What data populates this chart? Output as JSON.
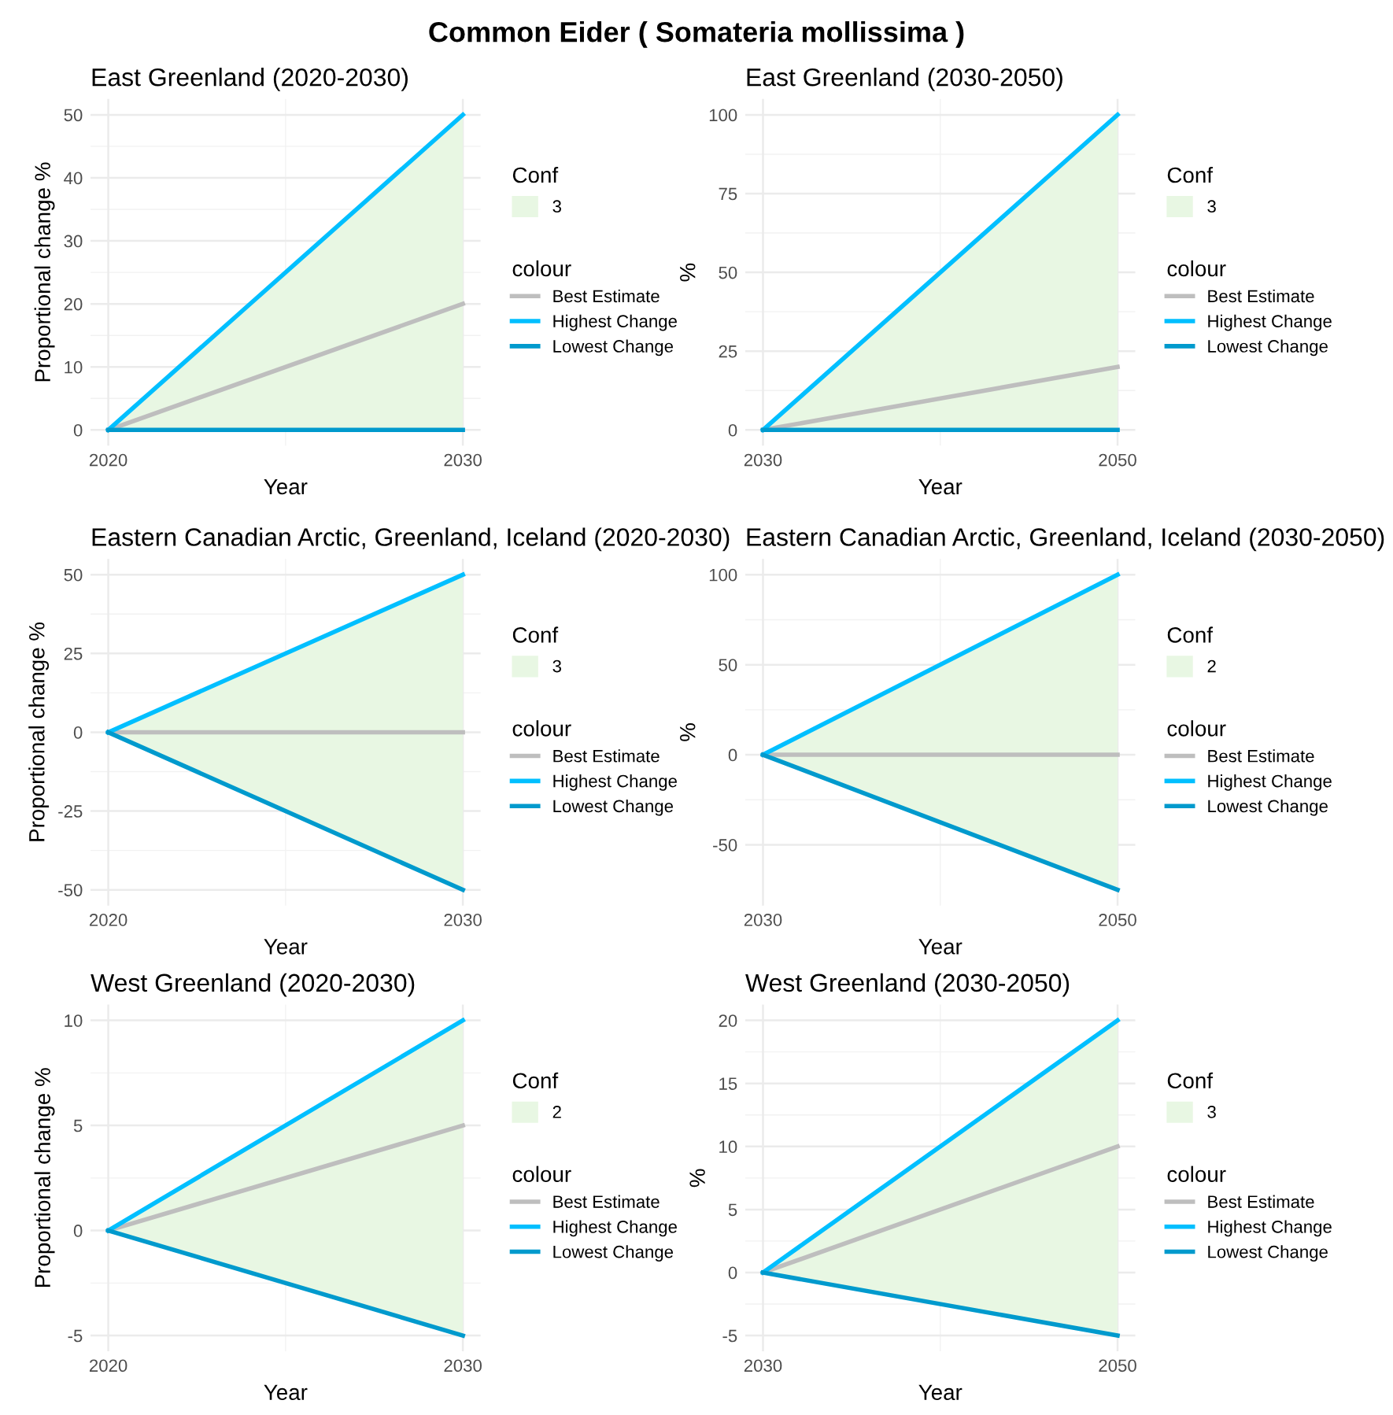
{
  "chart_data": [
    {
      "type": "line",
      "title": "East Greenland (2020-2030)",
      "xlabel": "Year",
      "ylabel": "Proportional change %",
      "x": [
        2020,
        2030
      ],
      "xlim": [
        2019.5,
        2030.5
      ],
      "xticks": [
        2020,
        2030
      ],
      "ylim": [
        -2.5,
        52.5
      ],
      "yticks": [
        0,
        10,
        20,
        30,
        40,
        50
      ],
      "grid": true,
      "legend": "right",
      "legend_title": "colour",
      "annotations": [
        "Conf",
        "3"
      ],
      "series": [
        {
          "name": "Best Estimate",
          "color": "#bebebe",
          "values": [
            0,
            20
          ],
          "lower": [
            0,
            0
          ],
          "upper": [
            0,
            50
          ]
        },
        {
          "name": "Highest Change",
          "color": "#00bfff",
          "values": [
            0,
            50
          ]
        },
        {
          "name": "Lowest Change",
          "color": "#009acd",
          "values": [
            0,
            0
          ]
        }
      ]
    },
    {
      "type": "line",
      "title": "East Greenland (2030-2050)",
      "xlabel": "Year",
      "ylabel": "%",
      "x": [
        2030,
        2050
      ],
      "xlim": [
        2029,
        2051
      ],
      "xticks": [
        2030,
        2050
      ],
      "ylim": [
        -5,
        105
      ],
      "yticks": [
        0,
        25,
        50,
        75,
        100
      ],
      "grid": true,
      "legend": "right",
      "legend_title": "colour",
      "annotations": [
        "Conf",
        "3"
      ],
      "series": [
        {
          "name": "Best Estimate",
          "color": "#bebebe",
          "values": [
            0,
            20
          ],
          "lower": [
            0,
            0
          ],
          "upper": [
            0,
            100
          ]
        },
        {
          "name": "Highest Change",
          "color": "#00bfff",
          "values": [
            0,
            100
          ]
        },
        {
          "name": "Lowest Change",
          "color": "#009acd",
          "values": [
            0,
            0
          ]
        }
      ]
    },
    {
      "type": "line",
      "title": "Eastern Canadian Arctic, Greenland, Iceland (2020-2030)",
      "xlabel": "Year",
      "ylabel": "Proportional change %",
      "x": [
        2020,
        2030
      ],
      "xlim": [
        2019.5,
        2030.5
      ],
      "xticks": [
        2020,
        2030
      ],
      "ylim": [
        -55,
        55
      ],
      "yticks": [
        -50,
        -25,
        0,
        25,
        50
      ],
      "grid": true,
      "legend": "right",
      "legend_title": "colour",
      "annotations": [
        "Conf",
        "3"
      ],
      "series": [
        {
          "name": "Best Estimate",
          "color": "#bebebe",
          "values": [
            0,
            0
          ],
          "lower": [
            0,
            -50
          ],
          "upper": [
            0,
            50
          ]
        },
        {
          "name": "Highest Change",
          "color": "#00bfff",
          "values": [
            0,
            50
          ]
        },
        {
          "name": "Lowest Change",
          "color": "#009acd",
          "values": [
            0,
            -50
          ]
        }
      ]
    },
    {
      "type": "line",
      "title": "Eastern Canadian Arctic, Greenland, Iceland (2030-2050)",
      "xlabel": "Year",
      "ylabel": "%",
      "x": [
        2030,
        2050
      ],
      "xlim": [
        2029,
        2051
      ],
      "xticks": [
        2030,
        2050
      ],
      "ylim": [
        -83.75,
        108.75
      ],
      "yticks": [
        -50,
        0,
        50,
        100
      ],
      "grid": true,
      "legend": "right",
      "legend_title": "colour",
      "annotations": [
        "Conf",
        "2"
      ],
      "series": [
        {
          "name": "Best Estimate",
          "color": "#bebebe",
          "values": [
            0,
            0
          ],
          "lower": [
            0,
            -75
          ],
          "upper": [
            0,
            100
          ]
        },
        {
          "name": "Highest Change",
          "color": "#00bfff",
          "values": [
            0,
            100
          ]
        },
        {
          "name": "Lowest Change",
          "color": "#009acd",
          "values": [
            0,
            -75
          ]
        }
      ]
    },
    {
      "type": "line",
      "title": "West Greenland (2020-2030)",
      "xlabel": "Year",
      "ylabel": "Proportional change %",
      "x": [
        2020,
        2030
      ],
      "xlim": [
        2019.5,
        2030.5
      ],
      "xticks": [
        2020,
        2030
      ],
      "ylim": [
        -5.75,
        10.75
      ],
      "yticks": [
        -5,
        0,
        5,
        10
      ],
      "grid": true,
      "legend": "right",
      "legend_title": "colour",
      "annotations": [
        "Conf",
        "2"
      ],
      "series": [
        {
          "name": "Best Estimate",
          "color": "#bebebe",
          "values": [
            0,
            5
          ],
          "lower": [
            0,
            -5
          ],
          "upper": [
            0,
            10
          ]
        },
        {
          "name": "Highest Change",
          "color": "#00bfff",
          "values": [
            0,
            10
          ]
        },
        {
          "name": "Lowest Change",
          "color": "#009acd",
          "values": [
            0,
            -5
          ]
        }
      ]
    },
    {
      "type": "line",
      "title": "West Greenland (2030-2050)",
      "xlabel": "Year",
      "ylabel": "%",
      "x": [
        2030,
        2050
      ],
      "xlim": [
        2029,
        2051
      ],
      "xticks": [
        2030,
        2050
      ],
      "ylim": [
        -6.25,
        21.25
      ],
      "yticks": [
        -5,
        0,
        5,
        10,
        15,
        20
      ],
      "grid": true,
      "legend": "right",
      "legend_title": "colour",
      "annotations": [
        "Conf",
        "3"
      ],
      "series": [
        {
          "name": "Best Estimate",
          "color": "#bebebe",
          "values": [
            0,
            10
          ],
          "lower": [
            0,
            -5
          ],
          "upper": [
            0,
            20
          ]
        },
        {
          "name": "Highest Change",
          "color": "#00bfff",
          "values": [
            0,
            20
          ]
        },
        {
          "name": "Lowest Change",
          "color": "#009acd",
          "values": [
            0,
            -5
          ]
        }
      ]
    },
    {
      "type": "other",
      "title": "Common Eider ( Somateria mollissima )"
    }
  ]
}
